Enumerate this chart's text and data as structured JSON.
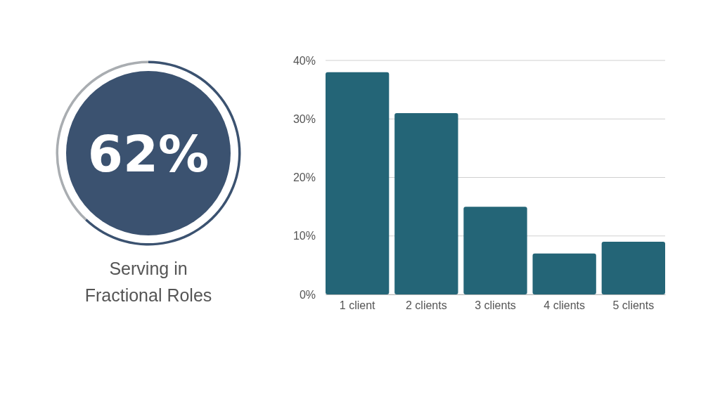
{
  "chart_data": [
    {
      "type": "donut",
      "title": "Serving in Fractional Roles",
      "annotations": [
        "62%"
      ],
      "categories": [
        null,
        null
      ],
      "values": [
        62,
        38
      ],
      "colors": [
        "#3b5270",
        "#a9adb1"
      ]
    },
    {
      "type": "bar",
      "categories": [
        "1 client",
        "2 clients",
        "3 clients",
        "4 clients",
        "5 clients"
      ],
      "values": [
        38,
        31,
        15,
        7,
        9
      ],
      "color": "#246577",
      "ylim": [
        0,
        40
      ],
      "yticks": [
        {
          "value": 0,
          "label": "0%"
        },
        {
          "value": 10,
          "label": "10%"
        },
        {
          "value": 20,
          "label": "20%"
        },
        {
          "value": 30,
          "label": "30%"
        },
        {
          "value": 40,
          "label": "40%"
        }
      ],
      "grid": "y"
    }
  ]
}
